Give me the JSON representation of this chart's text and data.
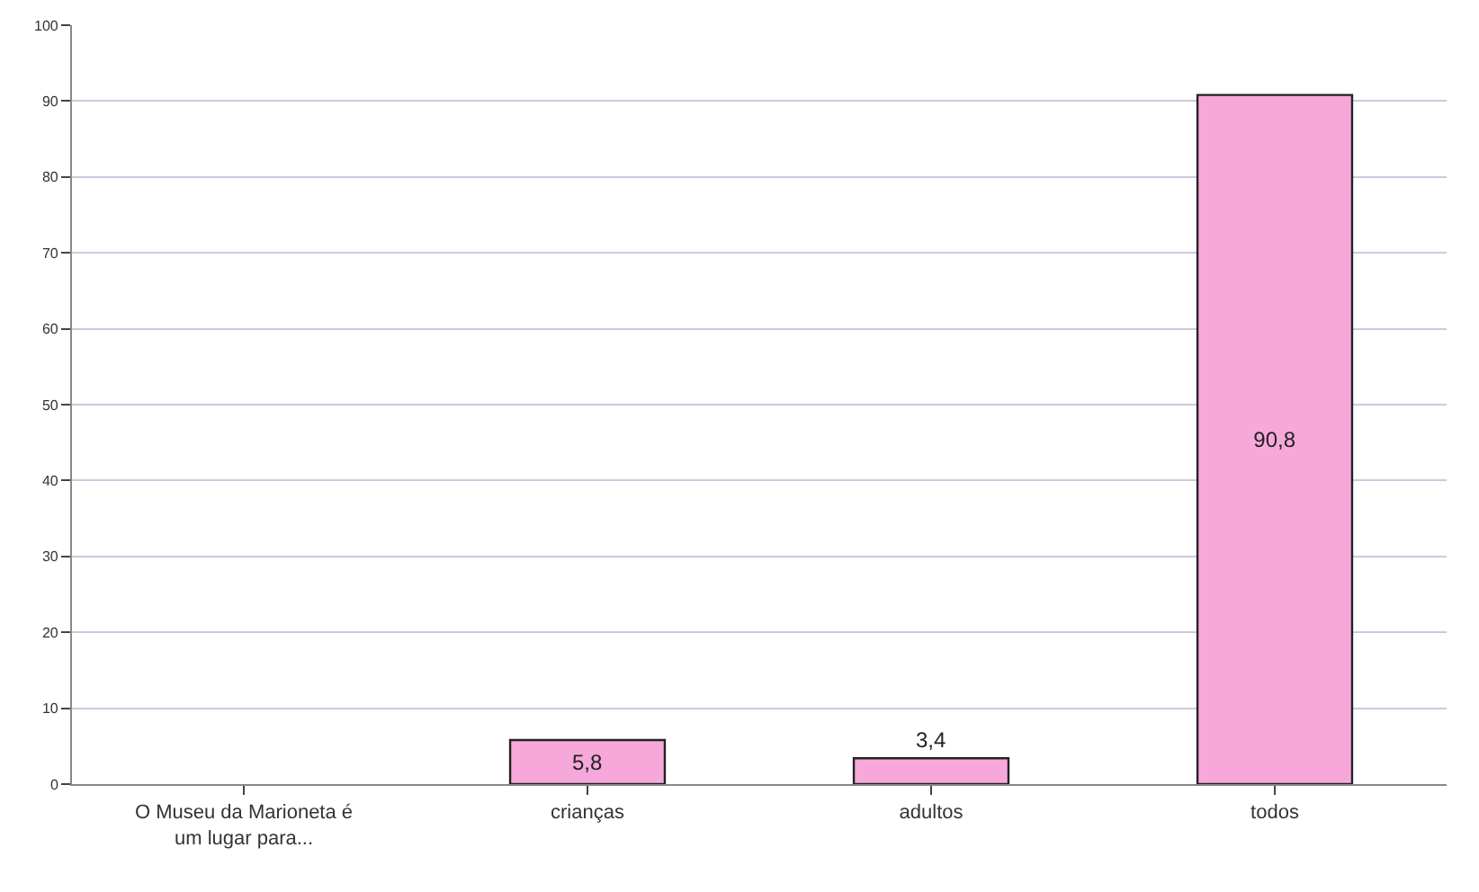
{
  "chart_data": {
    "type": "bar",
    "categories": [
      "O Museu da Marioneta é um lugar para...",
      "crianças",
      "adultos",
      "todos"
    ],
    "values": [
      null,
      5.8,
      3.4,
      90.8
    ],
    "value_labels": [
      null,
      "5,8",
      "3,4",
      "90,8"
    ],
    "color": "#f7a8da",
    "ylim": [
      0,
      100
    ],
    "yticks": [
      0,
      10,
      20,
      30,
      40,
      50,
      60,
      70,
      80,
      90,
      100
    ],
    "grid": "y"
  }
}
